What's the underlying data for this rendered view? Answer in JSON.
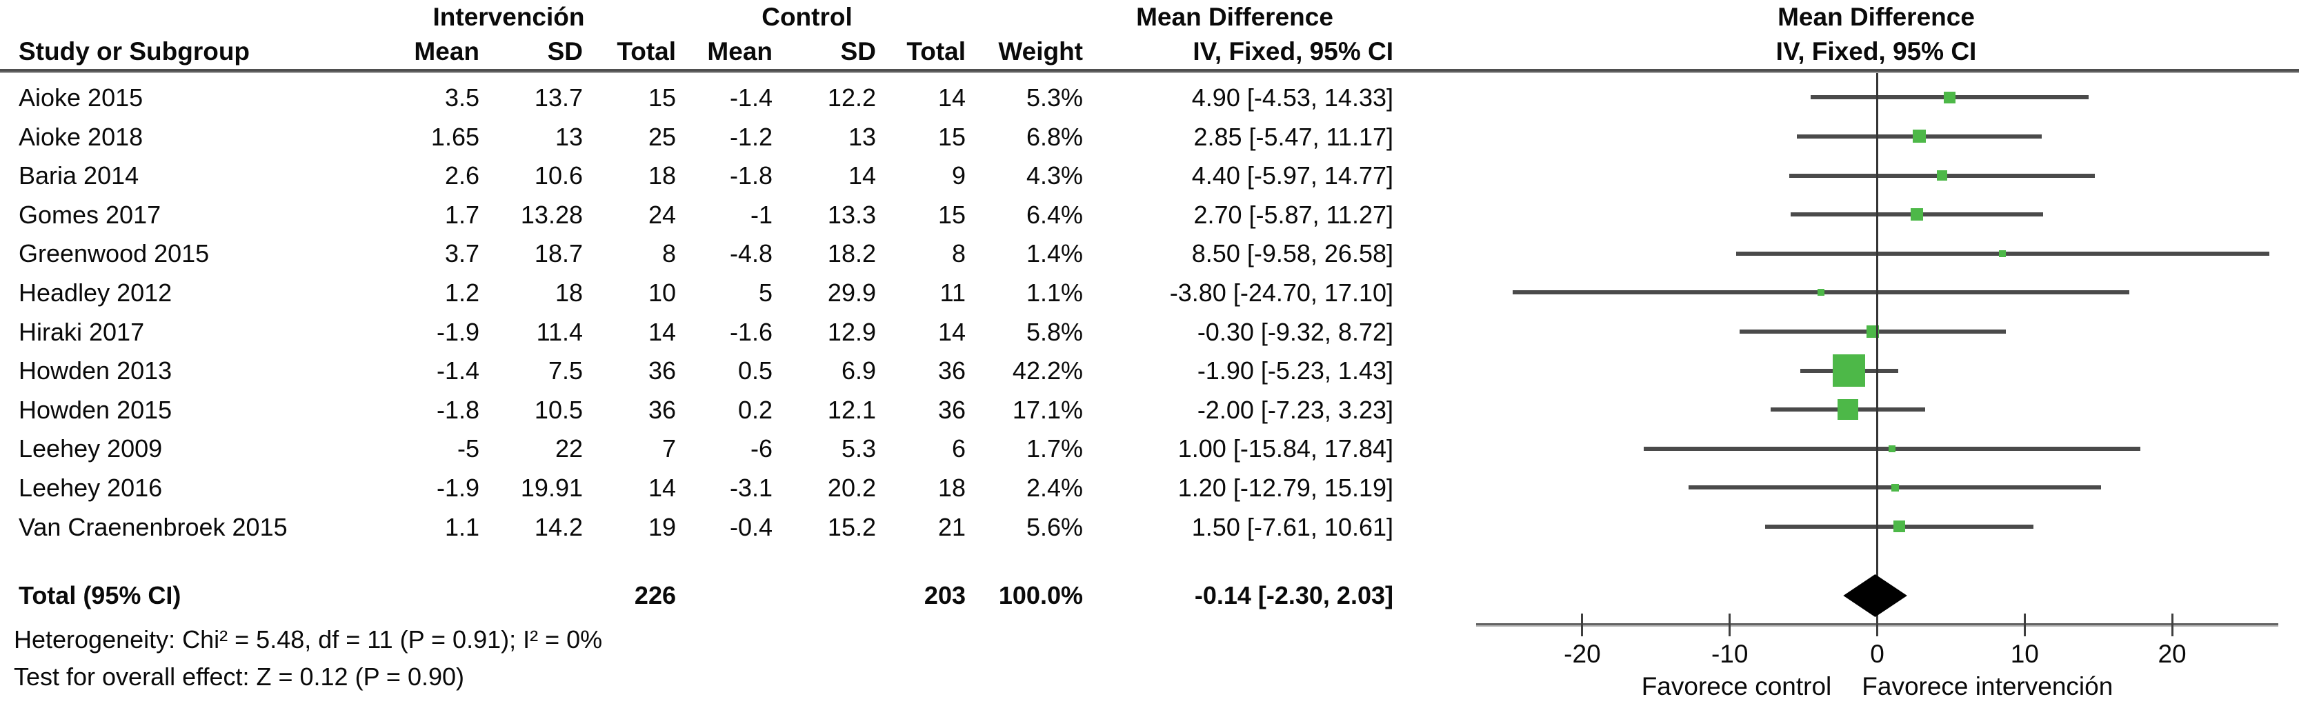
{
  "header": {
    "study": "Study or Subgroup",
    "group_intervention": "Intervención",
    "group_control": "Control",
    "group_md": "Mean Difference",
    "mean": "Mean",
    "sd": "SD",
    "total": "Total",
    "weight": "Weight",
    "method": "IV, Fixed, 95% CI"
  },
  "totals": {
    "label": "Total (95% CI)",
    "i_total": "226",
    "c_total": "203",
    "weight": "100.0%",
    "ci_text": "-0.14 [-2.30, 2.03]"
  },
  "footnotes": {
    "heterogeneity": "Heterogeneity: Chi² = 5.48, df = 11 (P = 0.91); I² = 0%",
    "overall_effect": "Test for overall effect: Z = 0.12 (P = 0.90)"
  },
  "colors": {
    "square": "#4db848",
    "ci_line": "#4a4a4a",
    "diamond": "#000000"
  },
  "chart_data": {
    "type": "forest",
    "title": "Mean Difference, IV, Fixed, 95% CI",
    "axis": {
      "range": [
        -27.2,
        27.2
      ],
      "ticks": [
        -20,
        -10,
        0,
        10,
        20
      ],
      "label_left": "Favorece control",
      "label_right": "Favorece intervención"
    },
    "studies": [
      {
        "label": "Aioke 2015",
        "i_mean": "3.5",
        "i_sd": "13.7",
        "i_total": "15",
        "c_mean": "-1.4",
        "c_sd": "12.2",
        "c_total": "14",
        "weight": "5.3%",
        "weight_val": 5.3,
        "ci_text": "4.90 [-4.53, 14.33]",
        "md": 4.9,
        "lo": -4.53,
        "hi": 14.33
      },
      {
        "label": "Aioke 2018",
        "i_mean": "1.65",
        "i_sd": "13",
        "i_total": "25",
        "c_mean": "-1.2",
        "c_sd": "13",
        "c_total": "15",
        "weight": "6.8%",
        "weight_val": 6.8,
        "ci_text": "2.85 [-5.47, 11.17]",
        "md": 2.85,
        "lo": -5.47,
        "hi": 11.17
      },
      {
        "label": "Baria 2014",
        "i_mean": "2.6",
        "i_sd": "10.6",
        "i_total": "18",
        "c_mean": "-1.8",
        "c_sd": "14",
        "c_total": "9",
        "weight": "4.3%",
        "weight_val": 4.3,
        "ci_text": "4.40 [-5.97, 14.77]",
        "md": 4.4,
        "lo": -5.97,
        "hi": 14.77
      },
      {
        "label": "Gomes 2017",
        "i_mean": "1.7",
        "i_sd": "13.28",
        "i_total": "24",
        "c_mean": "-1",
        "c_sd": "13.3",
        "c_total": "15",
        "weight": "6.4%",
        "weight_val": 6.4,
        "ci_text": "2.70 [-5.87, 11.27]",
        "md": 2.7,
        "lo": -5.87,
        "hi": 11.27
      },
      {
        "label": "Greenwood 2015",
        "i_mean": "3.7",
        "i_sd": "18.7",
        "i_total": "8",
        "c_mean": "-4.8",
        "c_sd": "18.2",
        "c_total": "8",
        "weight": "1.4%",
        "weight_val": 1.4,
        "ci_text": "8.50 [-9.58, 26.58]",
        "md": 8.5,
        "lo": -9.58,
        "hi": 26.58
      },
      {
        "label": "Headley 2012",
        "i_mean": "1.2",
        "i_sd": "18",
        "i_total": "10",
        "c_mean": "5",
        "c_sd": "29.9",
        "c_total": "11",
        "weight": "1.1%",
        "weight_val": 1.1,
        "ci_text": "-3.80 [-24.70, 17.10]",
        "md": -3.8,
        "lo": -24.7,
        "hi": 17.1
      },
      {
        "label": "Hiraki 2017",
        "i_mean": "-1.9",
        "i_sd": "11.4",
        "i_total": "14",
        "c_mean": "-1.6",
        "c_sd": "12.9",
        "c_total": "14",
        "weight": "5.8%",
        "weight_val": 5.8,
        "ci_text": "-0.30 [-9.32, 8.72]",
        "md": -0.3,
        "lo": -9.32,
        "hi": 8.72
      },
      {
        "label": "Howden 2013",
        "i_mean": "-1.4",
        "i_sd": "7.5",
        "i_total": "36",
        "c_mean": "0.5",
        "c_sd": "6.9",
        "c_total": "36",
        "weight": "42.2%",
        "weight_val": 42.2,
        "ci_text": "-1.90 [-5.23, 1.43]",
        "md": -1.9,
        "lo": -5.23,
        "hi": 1.43
      },
      {
        "label": "Howden 2015",
        "i_mean": "-1.8",
        "i_sd": "10.5",
        "i_total": "36",
        "c_mean": "0.2",
        "c_sd": "12.1",
        "c_total": "36",
        "weight": "17.1%",
        "weight_val": 17.1,
        "ci_text": "-2.00 [-7.23, 3.23]",
        "md": -2.0,
        "lo": -7.23,
        "hi": 3.23
      },
      {
        "label": "Leehey 2009",
        "i_mean": "-5",
        "i_sd": "22",
        "i_total": "7",
        "c_mean": "-6",
        "c_sd": "5.3",
        "c_total": "6",
        "weight": "1.7%",
        "weight_val": 1.7,
        "ci_text": "1.00 [-15.84, 17.84]",
        "md": 1.0,
        "lo": -15.84,
        "hi": 17.84
      },
      {
        "label": "Leehey 2016",
        "i_mean": "-1.9",
        "i_sd": "19.91",
        "i_total": "14",
        "c_mean": "-3.1",
        "c_sd": "20.2",
        "c_total": "18",
        "weight": "2.4%",
        "weight_val": 2.4,
        "ci_text": "1.20 [-12.79, 15.19]",
        "md": 1.2,
        "lo": -12.79,
        "hi": 15.19
      },
      {
        "label": "Van Craenenbroek 2015",
        "i_mean": "1.1",
        "i_sd": "14.2",
        "i_total": "19",
        "c_mean": "-0.4",
        "c_sd": "15.2",
        "c_total": "21",
        "weight": "5.6%",
        "weight_val": 5.6,
        "ci_text": "1.50 [-7.61, 10.61]",
        "md": 1.5,
        "lo": -7.61,
        "hi": 10.61
      }
    ],
    "total": {
      "md": -0.14,
      "lo": -2.3,
      "hi": 2.03
    }
  }
}
